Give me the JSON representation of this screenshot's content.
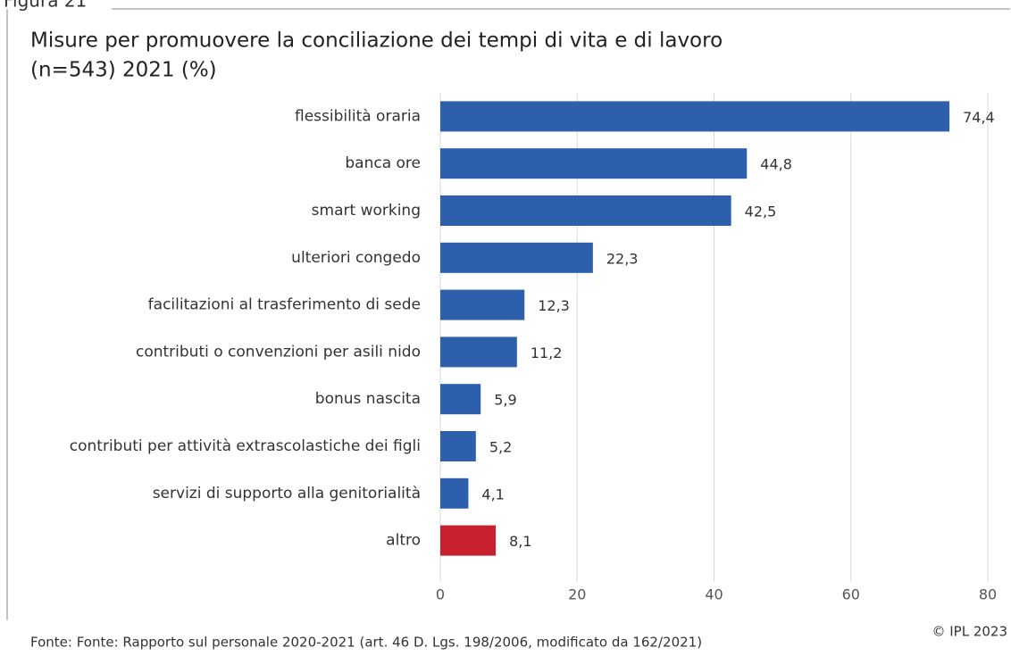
{
  "figure_label": "Figura 21",
  "chart_data": {
    "type": "hbar",
    "title": "Misure per promuovere la conciliazione dei tempi di vita e di lavoro",
    "subtitle": "(n=543) 2021 (%)",
    "categories": [
      "flessibilità oraria",
      "banca ore",
      "smart working",
      "ulteriori congedo",
      "facilitazioni al trasferimento di sede",
      "contributi o convenzioni per asili nido",
      "bonus nascita",
      "contributi per attività extrascolastiche dei figli",
      "servizi di supporto alla genitorialità",
      "altro"
    ],
    "values": [
      74.4,
      44.8,
      42.5,
      22.3,
      12.3,
      11.2,
      5.9,
      5.2,
      4.1,
      8.1
    ],
    "value_labels": [
      "74,4",
      "44,8",
      "42,5",
      "22,3",
      "12,3",
      "11,2",
      "5,9",
      "5,2",
      "4,1",
      "8,1"
    ],
    "colors": [
      "#2e5fad",
      "#2e5fad",
      "#2e5fad",
      "#2e5fad",
      "#2e5fad",
      "#2e5fad",
      "#2e5fad",
      "#2e5fad",
      "#2e5fad",
      "#c8202f"
    ],
    "xlim": [
      0,
      80
    ],
    "xticks": [
      0,
      20,
      40,
      60,
      80
    ],
    "grid": true,
    "source": "Fonte: Fonte: Rapporto sul personale  2020-2021 (art. 46 D. Lgs. 198/2006, modificato da 162/2021)",
    "copyright": "© IPL 2023"
  }
}
